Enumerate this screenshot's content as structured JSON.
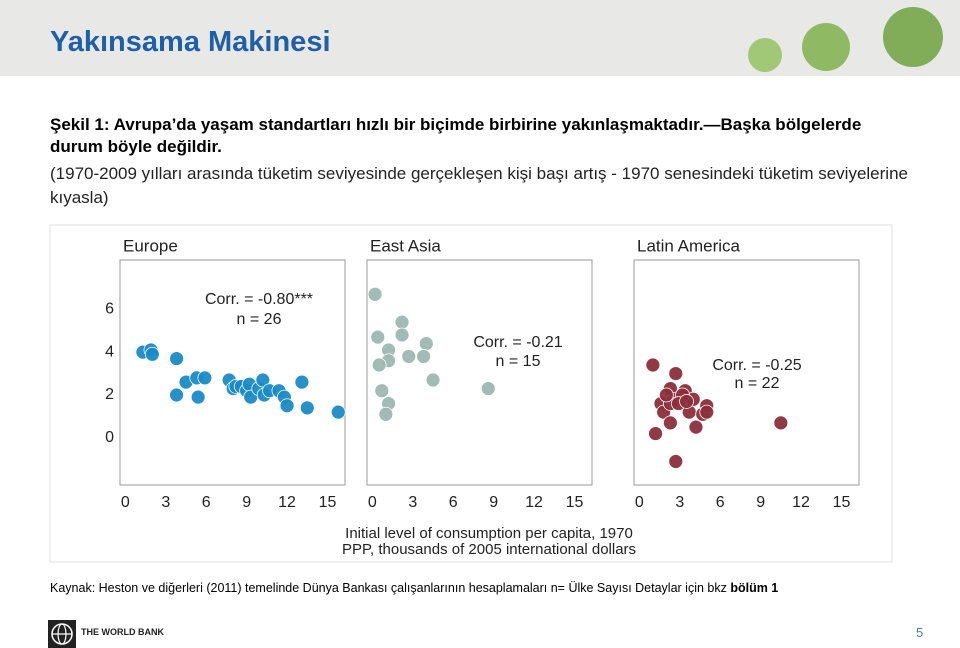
{
  "header": {
    "title": "Yakınsama Makinesi"
  },
  "caption": {
    "heading": "Şekil 1: Avrupa’da yaşam standartları hızlı bir biçimde birbirine yakınlaşmaktadır.—Başka bölgelerde durum böyle değildir.",
    "subheading": "(1970-2009 yılları arasında tüketim seviyesinde gerçekleşen kişi başı artış - 1970 senesindeki tüketim seviyelerine kıyasla)"
  },
  "x_label": [
    "Initial level of consumption per capita, 1970",
    "PPP, thousands of 2005 international dollars"
  ],
  "chart_data": [
    {
      "type": "scatter",
      "title": "Europe",
      "color": "#1b8bc6",
      "x": [
        1.3,
        1.9,
        2.0,
        3.8,
        3.8,
        4.5,
        5.3,
        5.9,
        5.4,
        7.7,
        8.0,
        8.2,
        8.6,
        9.0,
        9.2,
        9.3,
        9.9,
        10.2,
        10.3,
        10.7,
        11.4,
        11.8,
        12.0,
        13.1,
        13.5,
        15.8
      ],
      "values": [
        4.0,
        4.1,
        3.9,
        3.7,
        2.0,
        2.6,
        2.8,
        2.8,
        1.9,
        2.7,
        2.3,
        2.4,
        2.4,
        2.2,
        2.5,
        1.9,
        2.3,
        2.7,
        2.0,
        2.2,
        2.2,
        1.9,
        1.5,
        2.6,
        1.4,
        1.2
      ],
      "annotations": [
        "Corr. = -0.80***",
        "n = 26"
      ],
      "xlim": [
        -0.4,
        16.3
      ],
      "xticks": [
        0,
        3,
        6,
        9,
        12,
        15
      ],
      "ylim": [
        -2.2,
        8.3
      ],
      "yticks": [
        0,
        2,
        4,
        6
      ]
    },
    {
      "type": "scatter",
      "title": "East Asia",
      "color": "#9cb8b4",
      "x": [
        0.2,
        0.4,
        2.2,
        2.2,
        1.2,
        1.2,
        0.5,
        2.7,
        4.0,
        3.8,
        4.5,
        0.7,
        1.2,
        1.0,
        8.6
      ],
      "values": [
        6.7,
        4.7,
        5.4,
        4.8,
        4.1,
        3.6,
        3.4,
        3.8,
        4.4,
        3.8,
        2.7,
        2.2,
        1.6,
        1.1,
        2.3
      ],
      "annotations": [
        "Corr. = -0.21",
        "n = 15"
      ],
      "xlim": [
        -0.4,
        16.3
      ],
      "xticks": [
        0,
        3,
        6,
        9,
        12,
        15
      ],
      "ylim": [
        -2.2,
        8.3
      ]
    },
    {
      "type": "scatter",
      "title": "Latin America",
      "color": "#8c2f3b",
      "x": [
        1.0,
        2.7,
        2.3,
        3.4,
        1.6,
        1.8,
        1.2,
        2.3,
        2.7,
        3.7,
        4.0,
        4.2,
        4.7,
        5.0,
        5.0,
        2.7,
        3.2,
        2.3,
        2.9,
        10.5,
        2.0,
        3.5
      ],
      "values": [
        3.4,
        3.0,
        2.3,
        2.2,
        1.6,
        1.2,
        0.2,
        0.7,
        -1.1,
        1.2,
        1.8,
        0.5,
        1.1,
        1.5,
        1.2,
        1.8,
        2.0,
        1.6,
        1.6,
        0.7,
        2.0,
        1.7
      ],
      "annotations": [
        "Corr. = -0.25",
        "n = 22"
      ],
      "xlim": [
        -0.4,
        16.3
      ],
      "xticks": [
        0,
        3,
        6,
        9,
        12,
        15
      ],
      "ylim": [
        -2.2,
        8.3
      ]
    }
  ],
  "source": {
    "text": "Kaynak: Heston ve diğerleri (2011) temelinde Dünya Bankası çalışanlarının hesaplamaları n= Ülke Sayısı Detaylar için bkz",
    "emphasis": "bölüm 1"
  },
  "footer": {
    "logo_text": "THE WORLD BANK",
    "page_number": "5"
  }
}
